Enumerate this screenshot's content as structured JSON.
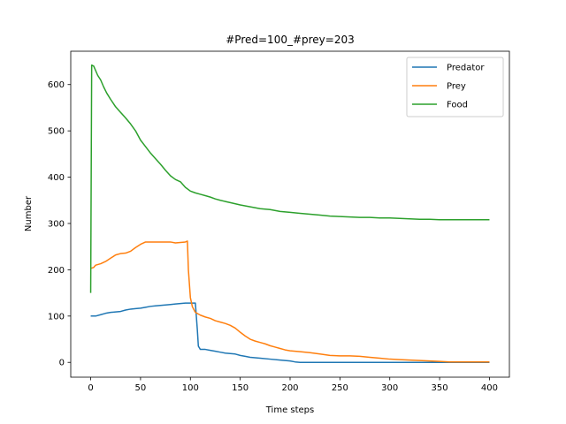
{
  "chart_data": {
    "type": "line",
    "title": "#Pred=100_#prey=203",
    "xlabel": "Time steps",
    "ylabel": "Number",
    "xlim": [
      -20,
      420
    ],
    "ylim": [
      -32,
      672
    ],
    "xticks": [
      0,
      50,
      100,
      150,
      200,
      250,
      300,
      350,
      400
    ],
    "yticks": [
      0,
      100,
      200,
      300,
      400,
      500,
      600
    ],
    "grid": false,
    "legend_position": "top-right",
    "series": [
      {
        "name": "Predator",
        "color": "#1f77b4",
        "points": [
          [
            0,
            100
          ],
          [
            5,
            100
          ],
          [
            10,
            103
          ],
          [
            15,
            106
          ],
          [
            20,
            108
          ],
          [
            25,
            109
          ],
          [
            30,
            110
          ],
          [
            35,
            113
          ],
          [
            40,
            115
          ],
          [
            45,
            116
          ],
          [
            50,
            117
          ],
          [
            55,
            119
          ],
          [
            60,
            121
          ],
          [
            65,
            122
          ],
          [
            70,
            123
          ],
          [
            75,
            124
          ],
          [
            80,
            125
          ],
          [
            85,
            126
          ],
          [
            90,
            127
          ],
          [
            95,
            128
          ],
          [
            100,
            128
          ],
          [
            105,
            128
          ],
          [
            107,
            70
          ],
          [
            108,
            35
          ],
          [
            110,
            28
          ],
          [
            115,
            28
          ],
          [
            120,
            26
          ],
          [
            125,
            24
          ],
          [
            130,
            22
          ],
          [
            135,
            20
          ],
          [
            140,
            19
          ],
          [
            145,
            18
          ],
          [
            150,
            15
          ],
          [
            155,
            13
          ],
          [
            160,
            11
          ],
          [
            170,
            9
          ],
          [
            180,
            7
          ],
          [
            190,
            5
          ],
          [
            200,
            3
          ],
          [
            205,
            1
          ],
          [
            210,
            0
          ],
          [
            250,
            0
          ],
          [
            300,
            0
          ],
          [
            350,
            0
          ],
          [
            400,
            0
          ]
        ]
      },
      {
        "name": "Prey",
        "color": "#ff7f0e",
        "points": [
          [
            0,
            203
          ],
          [
            3,
            205
          ],
          [
            5,
            210
          ],
          [
            10,
            213
          ],
          [
            15,
            218
          ],
          [
            20,
            225
          ],
          [
            25,
            232
          ],
          [
            30,
            235
          ],
          [
            35,
            236
          ],
          [
            40,
            240
          ],
          [
            45,
            248
          ],
          [
            50,
            255
          ],
          [
            55,
            260
          ],
          [
            60,
            260
          ],
          [
            65,
            260
          ],
          [
            70,
            260
          ],
          [
            75,
            260
          ],
          [
            80,
            260
          ],
          [
            85,
            258
          ],
          [
            90,
            259
          ],
          [
            95,
            260
          ],
          [
            97,
            262
          ],
          [
            98,
            200
          ],
          [
            100,
            140
          ],
          [
            102,
            120
          ],
          [
            105,
            108
          ],
          [
            110,
            102
          ],
          [
            115,
            98
          ],
          [
            120,
            95
          ],
          [
            125,
            90
          ],
          [
            130,
            87
          ],
          [
            135,
            84
          ],
          [
            140,
            80
          ],
          [
            145,
            74
          ],
          [
            150,
            65
          ],
          [
            155,
            57
          ],
          [
            160,
            50
          ],
          [
            165,
            46
          ],
          [
            170,
            43
          ],
          [
            175,
            40
          ],
          [
            180,
            36
          ],
          [
            185,
            33
          ],
          [
            190,
            30
          ],
          [
            195,
            27
          ],
          [
            200,
            25
          ],
          [
            210,
            23
          ],
          [
            220,
            21
          ],
          [
            230,
            18
          ],
          [
            240,
            15
          ],
          [
            250,
            14
          ],
          [
            260,
            14
          ],
          [
            270,
            13
          ],
          [
            280,
            11
          ],
          [
            290,
            9
          ],
          [
            300,
            7
          ],
          [
            310,
            6
          ],
          [
            320,
            5
          ],
          [
            330,
            4
          ],
          [
            340,
            3
          ],
          [
            350,
            2
          ],
          [
            360,
            1
          ],
          [
            370,
            1
          ],
          [
            400,
            1
          ]
        ]
      },
      {
        "name": "Food",
        "color": "#2ca02c",
        "points": [
          [
            0,
            150
          ],
          [
            1,
            642
          ],
          [
            3,
            640
          ],
          [
            5,
            630
          ],
          [
            7,
            620
          ],
          [
            10,
            610
          ],
          [
            13,
            595
          ],
          [
            16,
            582
          ],
          [
            20,
            568
          ],
          [
            25,
            552
          ],
          [
            30,
            540
          ],
          [
            35,
            528
          ],
          [
            40,
            515
          ],
          [
            45,
            500
          ],
          [
            50,
            480
          ],
          [
            55,
            466
          ],
          [
            60,
            452
          ],
          [
            65,
            440
          ],
          [
            70,
            428
          ],
          [
            75,
            415
          ],
          [
            80,
            403
          ],
          [
            85,
            395
          ],
          [
            90,
            390
          ],
          [
            95,
            378
          ],
          [
            100,
            370
          ],
          [
            105,
            366
          ],
          [
            110,
            363
          ],
          [
            115,
            360
          ],
          [
            120,
            357
          ],
          [
            125,
            353
          ],
          [
            130,
            350
          ],
          [
            140,
            345
          ],
          [
            150,
            340
          ],
          [
            160,
            336
          ],
          [
            170,
            332
          ],
          [
            180,
            330
          ],
          [
            190,
            326
          ],
          [
            200,
            324
          ],
          [
            210,
            322
          ],
          [
            220,
            320
          ],
          [
            230,
            318
          ],
          [
            240,
            316
          ],
          [
            250,
            315
          ],
          [
            260,
            314
          ],
          [
            270,
            313
          ],
          [
            280,
            313
          ],
          [
            290,
            312
          ],
          [
            300,
            312
          ],
          [
            310,
            311
          ],
          [
            320,
            310
          ],
          [
            330,
            309
          ],
          [
            340,
            309
          ],
          [
            350,
            308
          ],
          [
            360,
            308
          ],
          [
            370,
            308
          ],
          [
            380,
            308
          ],
          [
            390,
            308
          ],
          [
            400,
            308
          ]
        ]
      }
    ]
  }
}
